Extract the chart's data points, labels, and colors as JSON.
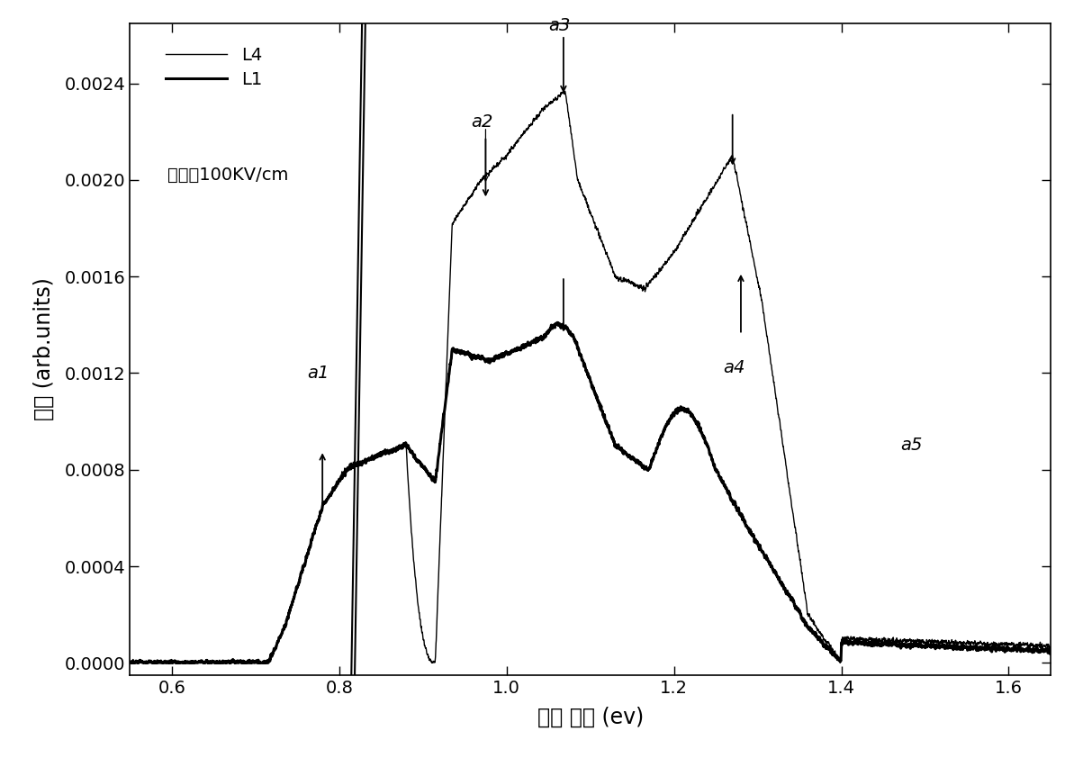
{
  "xlabel": "光子 能量 (ev)",
  "ylabel": "强度 (arb.units)",
  "xlim": [
    0.55,
    1.65
  ],
  "ylim": [
    -5e-05,
    0.00265
  ],
  "yticks": [
    0.0,
    0.0004,
    0.0008,
    0.0012,
    0.0016,
    0.002,
    0.0024
  ],
  "xticks": [
    0.6,
    0.8,
    1.0,
    1.2,
    1.4,
    1.6
  ],
  "legend_labels": [
    "L4",
    "L1"
  ],
  "annotation_text": "电场＝100KV/cm",
  "background_color": "#ffffff",
  "line_color": "#000000"
}
